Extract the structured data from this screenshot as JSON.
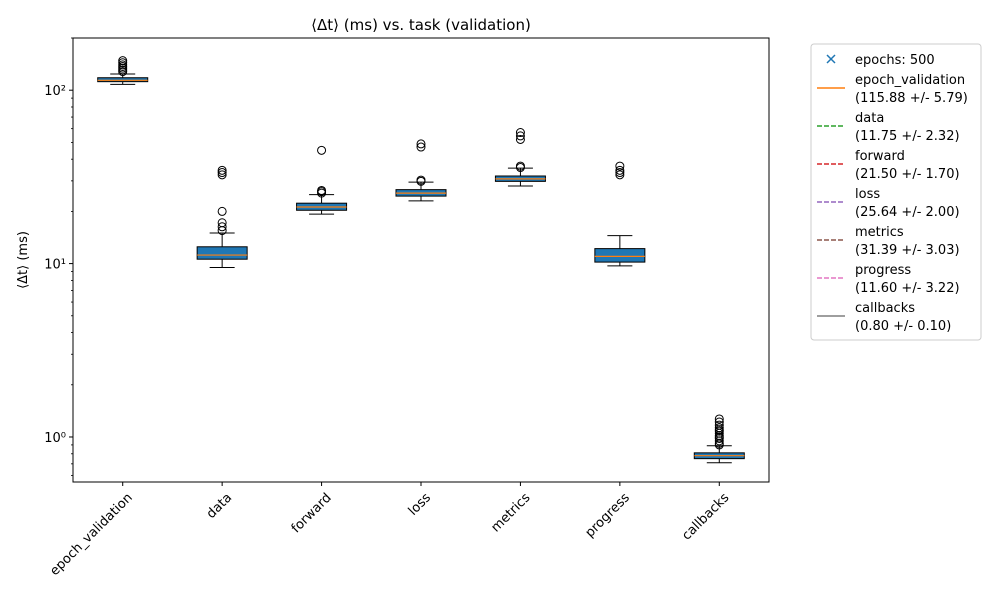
{
  "chart_data": {
    "type": "boxplot",
    "title": "⟨Δt⟩ (ms) vs. task (validation)",
    "xlabel": "",
    "ylabel": "⟨Δt⟩ (ms)",
    "yscale": "log",
    "ylim": [
      0.55,
      200
    ],
    "y_major_ticks": [
      {
        "value": 1,
        "label": "10⁰"
      },
      {
        "value": 10,
        "label": "10¹"
      },
      {
        "value": 100,
        "label": "10²"
      }
    ],
    "box_color": "#1f77b4",
    "median_color": "#ff7f0e",
    "categories": [
      "epoch_validation",
      "data",
      "forward",
      "loss",
      "metrics",
      "progress",
      "callbacks"
    ],
    "boxes": [
      {
        "label": "epoch_validation",
        "whislo": 108,
        "q1": 112,
        "med": 114,
        "q3": 118,
        "whishi": 124,
        "fliers": [
          128,
          131,
          134,
          137,
          140,
          144,
          148
        ]
      },
      {
        "label": "data",
        "whislo": 9.5,
        "q1": 10.6,
        "med": 11.2,
        "q3": 12.5,
        "whishi": 15.0,
        "fliers": [
          15.5,
          16.3,
          17.2,
          20.0,
          32.5,
          33.5,
          34.5
        ]
      },
      {
        "label": "forward",
        "whislo": 19.3,
        "q1": 20.3,
        "med": 21.2,
        "q3": 22.3,
        "whishi": 25.0,
        "fliers": [
          25.5,
          26.0,
          26.4,
          45.0
        ]
      },
      {
        "label": "loss",
        "whislo": 23.0,
        "q1": 24.5,
        "med": 25.5,
        "q3": 26.7,
        "whishi": 29.5,
        "fliers": [
          29.8,
          30.3,
          47.0,
          49.0
        ]
      },
      {
        "label": "metrics",
        "whislo": 28.0,
        "q1": 29.8,
        "med": 30.8,
        "q3": 32.0,
        "whishi": 35.5,
        "fliers": [
          35.8,
          36.5,
          52.0,
          54.5,
          57.0
        ]
      },
      {
        "label": "progress",
        "whislo": 9.7,
        "q1": 10.2,
        "med": 11.0,
        "q3": 12.2,
        "whishi": 14.5,
        "fliers": [
          32.5,
          33.5,
          34.5,
          36.5
        ]
      },
      {
        "label": "callbacks",
        "whislo": 0.71,
        "q1": 0.75,
        "med": 0.78,
        "q3": 0.81,
        "whishi": 0.89,
        "fliers": [
          0.9,
          0.92,
          0.95,
          0.98,
          1.0,
          1.02,
          1.05,
          1.08,
          1.1,
          1.13,
          1.17,
          1.22,
          1.27
        ]
      }
    ],
    "legend": {
      "placement": "outside-right",
      "entries": [
        {
          "style": "marker-x",
          "color": "#1f77b4",
          "lines": [
            "epochs: 500"
          ]
        },
        {
          "style": "solid",
          "color": "#ff7f0e",
          "lines": [
            "epoch_validation",
            "(115.88 +/- 5.79)"
          ]
        },
        {
          "style": "dashed",
          "color": "#2ca02c",
          "lines": [
            "data",
            "(11.75 +/- 2.32)"
          ]
        },
        {
          "style": "dashed",
          "color": "#d62728",
          "lines": [
            "forward",
            "(21.50 +/- 1.70)"
          ]
        },
        {
          "style": "dashed",
          "color": "#9467bd",
          "lines": [
            "loss",
            "(25.64 +/- 2.00)"
          ]
        },
        {
          "style": "dashed",
          "color": "#8c564b",
          "lines": [
            "metrics",
            "(31.39 +/- 3.03)"
          ]
        },
        {
          "style": "dashed",
          "color": "#e377c2",
          "lines": [
            "progress",
            "(11.60 +/- 3.22)"
          ]
        },
        {
          "style": "solid",
          "color": "#7f7f7f",
          "lines": [
            "callbacks",
            "(0.80 +/- 0.10)"
          ]
        }
      ]
    }
  }
}
